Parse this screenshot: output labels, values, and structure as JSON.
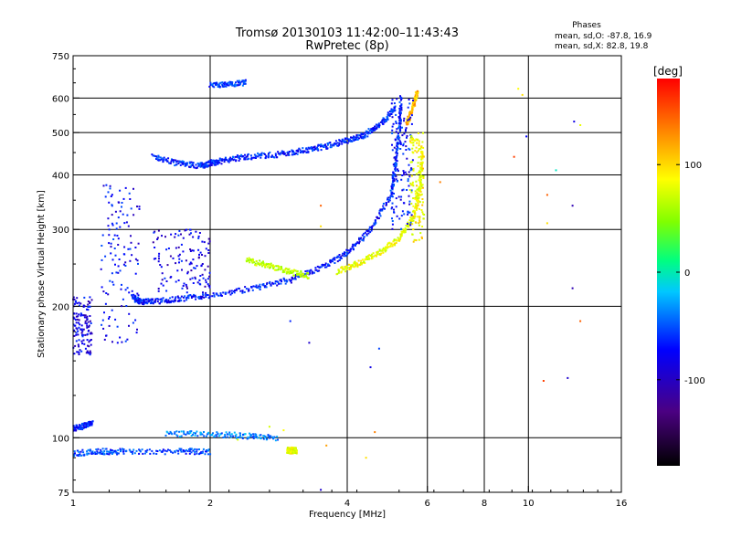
{
  "chart_data": {
    "type": "scatter",
    "title": "Tromsø 20130103 11:42:00–11:43:43",
    "subtitle": "RwPretec (8p)",
    "xlabel": "Frequency [MHz]",
    "ylabel": "Stationary phase Virtual Height [km]",
    "x_scale": "log2",
    "y_scale": "log",
    "xlim": [
      1,
      16
    ],
    "ylim": [
      75,
      750
    ],
    "x_ticks": [
      1,
      2,
      4,
      6,
      8,
      10,
      16
    ],
    "y_ticks": [
      75,
      100,
      200,
      300,
      400,
      500,
      600,
      750
    ],
    "grid": true,
    "annotation": {
      "title": "Phases",
      "line1": "mean, sd,O: -87.8, 16.9",
      "line2": "mean, sd,X:  82.8, 19.8"
    },
    "colorbar": {
      "label": "[deg]",
      "range": [
        -180,
        180
      ],
      "ticks": [
        -100,
        0,
        100
      ]
    },
    "traces": [
      {
        "x": [
          1.5,
          1.7,
          1.9,
          2.0,
          2.1
        ],
        "y": [
          440,
          425,
          420,
          425,
          430
        ],
        "phase": -90
      },
      {
        "x": [
          2.1,
          2.4,
          2.8,
          3.2,
          3.6,
          4.0,
          4.4,
          4.8,
          5.1
        ],
        "y": [
          430,
          440,
          445,
          455,
          465,
          480,
          495,
          530,
          570
        ],
        "phase": -90
      },
      {
        "x": [
          1.35,
          1.4,
          1.5,
          1.7,
          2.0,
          2.5,
          3.0,
          3.5,
          4.0,
          4.5,
          5.0
        ],
        "y": [
          210,
          205,
          205,
          208,
          212,
          220,
          230,
          245,
          265,
          300,
          360
        ],
        "phase": -95
      },
      {
        "x": [
          5.0,
          5.1,
          5.2,
          5.25
        ],
        "y": [
          360,
          420,
          500,
          600
        ],
        "phase": -90
      },
      {
        "x": [
          3.8,
          4.2,
          4.7,
          5.2,
          5.6,
          5.8,
          5.85
        ],
        "y": [
          240,
          250,
          265,
          285,
          320,
          380,
          460
        ],
        "phase": 90
      },
      {
        "x": [
          5.4,
          5.6,
          5.7
        ],
        "y": [
          520,
          580,
          620
        ],
        "phase": 120
      },
      {
        "x": [
          1.0,
          1.15,
          1.3,
          1.7,
          2.0
        ],
        "y": [
          92,
          93,
          93,
          93,
          93
        ],
        "phase": -80
      },
      {
        "x": [
          1.0,
          1.05,
          1.1
        ],
        "y": [
          105,
          106,
          108
        ],
        "phase": -95
      },
      {
        "x": [
          1.6,
          2.0,
          2.4,
          2.8
        ],
        "y": [
          102,
          102,
          101,
          100
        ],
        "phase": -60
      },
      {
        "x": [
          2.0,
          2.2,
          2.4
        ],
        "y": [
          640,
          645,
          650
        ],
        "phase": -85
      },
      {
        "x": [
          2.4,
          2.7,
          3.0,
          3.3
        ],
        "y": [
          255,
          248,
          240,
          235
        ],
        "phase": 70
      }
    ],
    "clusters": [
      {
        "x": [
          1.15,
          1.4
        ],
        "y": [
          165,
          380
        ],
        "phase": -100
      },
      {
        "x": [
          1.0,
          1.1
        ],
        "y": [
          155,
          210
        ],
        "phase": -110
      },
      {
        "x": [
          1.5,
          2.0
        ],
        "y": [
          215,
          300
        ],
        "phase": -110
      },
      {
        "x": [
          2.95,
          3.1
        ],
        "y": [
          92,
          95
        ],
        "phase": 90
      },
      {
        "x": [
          5.0,
          5.6
        ],
        "y": [
          300,
          600
        ],
        "phase": -95
      },
      {
        "x": [
          5.5,
          5.9
        ],
        "y": [
          280,
          500
        ],
        "phase": 95
      }
    ],
    "points": [
      {
        "x": 9.5,
        "y": 630,
        "phase": 100
      },
      {
        "x": 9.7,
        "y": 610,
        "phase": 110
      },
      {
        "x": 9.9,
        "y": 490,
        "phase": -100
      },
      {
        "x": 11.0,
        "y": 360,
        "phase": 150
      },
      {
        "x": 11.0,
        "y": 310,
        "phase": 110
      },
      {
        "x": 11.5,
        "y": 410,
        "phase": -20
      },
      {
        "x": 12.5,
        "y": 340,
        "phase": -130
      },
      {
        "x": 12.6,
        "y": 530,
        "phase": -110
      },
      {
        "x": 13.0,
        "y": 520,
        "phase": 90
      },
      {
        "x": 12.5,
        "y": 220,
        "phase": -130
      },
      {
        "x": 13.0,
        "y": 185,
        "phase": 150
      },
      {
        "x": 10.8,
        "y": 135,
        "phase": 160
      },
      {
        "x": 12.2,
        "y": 137,
        "phase": -120
      },
      {
        "x": 9.3,
        "y": 440,
        "phase": 160
      },
      {
        "x": 6.4,
        "y": 385,
        "phase": 140
      },
      {
        "x": 3.5,
        "y": 340,
        "phase": 150
      },
      {
        "x": 3.5,
        "y": 305,
        "phase": 110
      },
      {
        "x": 3.0,
        "y": 185,
        "phase": -90
      },
      {
        "x": 3.3,
        "y": 165,
        "phase": -120
      },
      {
        "x": 4.5,
        "y": 145,
        "phase": -110
      },
      {
        "x": 4.7,
        "y": 160,
        "phase": -80
      },
      {
        "x": 4.6,
        "y": 103,
        "phase": 140
      },
      {
        "x": 4.4,
        "y": 90,
        "phase": 110
      },
      {
        "x": 3.6,
        "y": 96,
        "phase": 130
      },
      {
        "x": 3.5,
        "y": 76,
        "phase": -120
      },
      {
        "x": 2.7,
        "y": 106,
        "phase": 80
      },
      {
        "x": 2.9,
        "y": 104,
        "phase": 100
      },
      {
        "x": 2.3,
        "y": 99,
        "phase": 80
      }
    ]
  }
}
